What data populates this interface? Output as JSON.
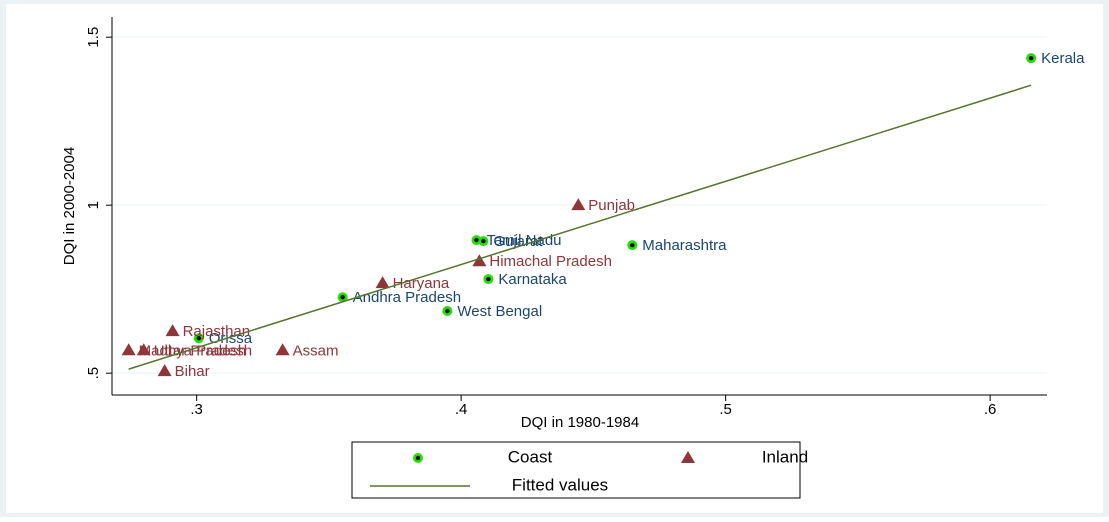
{
  "chart_data": {
    "type": "scatter",
    "x_label": "DQI in 1980-1984",
    "y_label": "DQI in 2000-2004",
    "xlim": [
      0.268,
      0.6215
    ],
    "ylim": [
      0.435,
      1.56
    ],
    "xticks": [
      {
        "value": 0.3,
        "label": ".3"
      },
      {
        "value": 0.4,
        "label": ".4"
      },
      {
        "value": 0.5,
        "label": ".5"
      },
      {
        "value": 0.6,
        "label": ".6"
      }
    ],
    "yticks": [
      {
        "value": 0.5,
        "label": ".5"
      },
      1,
      1.5
    ],
    "grid": true,
    "series": [
      {
        "name": "Coast",
        "mode": "markers",
        "marker": "circle",
        "color": "#22e000",
        "label_color": "#1a476f",
        "labels": [
          "Kerala",
          "Tamil Nadu",
          "Gujarat",
          "Maharashtra",
          "Karnataka",
          "Andhra Pradesh",
          "West Bengal",
          "Orissa"
        ],
        "x": [
          0.6155,
          0.4058,
          0.4084,
          0.4647,
          0.4103,
          0.3552,
          0.3948,
          0.3008
        ],
        "values": [
          1.4375,
          0.896,
          0.893,
          0.881,
          0.78,
          0.726,
          0.685,
          0.604
        ]
      },
      {
        "name": "Inland",
        "mode": "markers",
        "marker": "triangle",
        "color": "#90353b",
        "label_color": "#90353b",
        "labels": [
          "Punjab",
          "Himachal Pradesh",
          "Haryana",
          "Rajasthan",
          "Madhya Pradesh",
          "Uttar Pradesh",
          "Assam",
          "Bihar"
        ],
        "x": [
          0.4443,
          0.4069,
          0.3703,
          0.2909,
          0.2743,
          0.28,
          0.3325,
          0.2879
        ],
        "values": [
          1.0,
          0.833,
          0.768,
          0.625,
          0.568,
          0.568,
          0.568,
          0.506
        ]
      },
      {
        "name": "Fitted values",
        "mode": "line",
        "color": "#55752f",
        "x": [
          0.2743,
          0.6155
        ],
        "values": [
          0.512,
          1.357
        ]
      }
    ]
  }
}
